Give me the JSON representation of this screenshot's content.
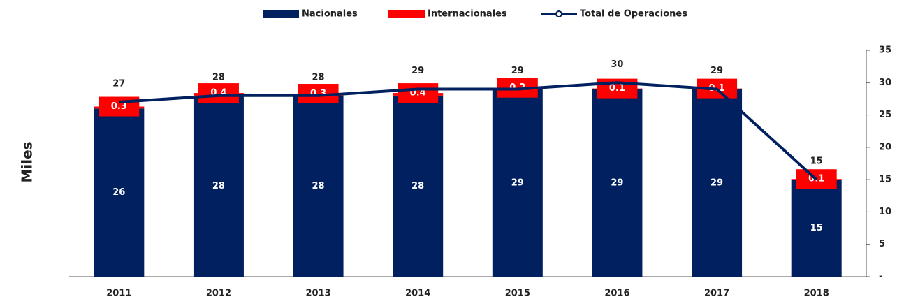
{
  "chart_data": {
    "type": "bar",
    "y_label": "Miles",
    "categories": [
      "2011",
      "2012",
      "2013",
      "2014",
      "2015",
      "2016",
      "2017",
      "2018"
    ],
    "series": [
      {
        "name": "Nacionales",
        "color": "#002060",
        "values": [
          26,
          28,
          28,
          28,
          29,
          29,
          29,
          15
        ]
      },
      {
        "name": "Internacionales",
        "color": "#ff0000",
        "values": [
          0.3,
          0.4,
          0.3,
          0.4,
          0.2,
          0.1,
          0.1,
          0.1
        ]
      },
      {
        "name": "Total de Operaciones",
        "color": "#002060",
        "type": "line",
        "values": [
          27,
          28,
          28,
          29,
          29,
          30,
          29,
          15
        ]
      }
    ],
    "ylim": [
      0,
      35
    ],
    "yticks": [
      {
        "value": 0,
        "label": "-"
      },
      5,
      10,
      15,
      20,
      25,
      30,
      35
    ]
  }
}
